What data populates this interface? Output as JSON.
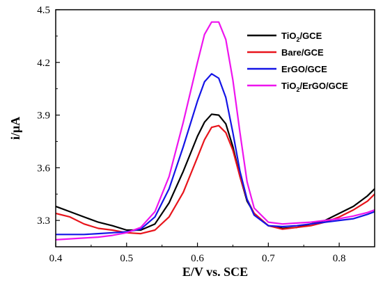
{
  "chart_data": {
    "type": "line",
    "xlabel": "E/V vs. SCE",
    "ylabel": "i/μA",
    "xlim": [
      0.4,
      0.85
    ],
    "ylim": [
      3.15,
      4.5
    ],
    "xticks": [
      "0.4",
      "0.5",
      "0.6",
      "0.7",
      "0.8"
    ],
    "yticks": [
      "3.3",
      "3.6",
      "3.9",
      "4.2",
      "4.5"
    ],
    "grid": false,
    "legend_position": "top-right",
    "series": [
      {
        "name": "TiO2/GCE",
        "legend_parts": [
          "TiO",
          "2",
          "/GCE"
        ],
        "color": "#000000",
        "x": [
          0.4,
          0.42,
          0.44,
          0.46,
          0.48,
          0.5,
          0.52,
          0.54,
          0.56,
          0.58,
          0.6,
          0.61,
          0.62,
          0.63,
          0.64,
          0.65,
          0.66,
          0.67,
          0.68,
          0.7,
          0.72,
          0.74,
          0.76,
          0.78,
          0.8,
          0.82,
          0.84,
          0.85
        ],
        "y": [
          3.38,
          3.35,
          3.32,
          3.29,
          3.27,
          3.245,
          3.245,
          3.28,
          3.4,
          3.58,
          3.78,
          3.86,
          3.905,
          3.9,
          3.85,
          3.72,
          3.55,
          3.41,
          3.34,
          3.27,
          3.255,
          3.26,
          3.28,
          3.3,
          3.34,
          3.38,
          3.44,
          3.48
        ]
      },
      {
        "name": "Bare/GCE",
        "legend_parts": [
          "Bare/GCE"
        ],
        "color": "#e8141b",
        "x": [
          0.4,
          0.42,
          0.44,
          0.46,
          0.48,
          0.5,
          0.52,
          0.54,
          0.56,
          0.58,
          0.6,
          0.61,
          0.62,
          0.63,
          0.64,
          0.65,
          0.66,
          0.67,
          0.68,
          0.7,
          0.72,
          0.74,
          0.76,
          0.78,
          0.8,
          0.82,
          0.84,
          0.85
        ],
        "y": [
          3.34,
          3.32,
          3.28,
          3.255,
          3.245,
          3.23,
          3.225,
          3.245,
          3.32,
          3.46,
          3.66,
          3.76,
          3.83,
          3.84,
          3.8,
          3.7,
          3.55,
          3.42,
          3.34,
          3.27,
          3.25,
          3.26,
          3.27,
          3.29,
          3.32,
          3.36,
          3.41,
          3.45
        ]
      },
      {
        "name": "ErGO/GCE",
        "legend_parts": [
          "ErGO/GCE"
        ],
        "color": "#1414e6",
        "x": [
          0.4,
          0.42,
          0.44,
          0.46,
          0.48,
          0.5,
          0.52,
          0.54,
          0.56,
          0.58,
          0.6,
          0.61,
          0.62,
          0.63,
          0.64,
          0.65,
          0.66,
          0.67,
          0.68,
          0.7,
          0.72,
          0.74,
          0.76,
          0.78,
          0.8,
          0.82,
          0.84,
          0.85
        ],
        "y": [
          3.22,
          3.22,
          3.22,
          3.225,
          3.23,
          3.235,
          3.25,
          3.32,
          3.48,
          3.72,
          3.98,
          4.09,
          4.135,
          4.11,
          4.0,
          3.8,
          3.58,
          3.42,
          3.33,
          3.27,
          3.265,
          3.27,
          3.28,
          3.29,
          3.3,
          3.31,
          3.335,
          3.35
        ]
      },
      {
        "name": "TiO2/ErGO/GCE",
        "legend_parts": [
          "TiO",
          "2",
          "/ErGO/GCE"
        ],
        "color": "#ee14ee",
        "x": [
          0.4,
          0.42,
          0.44,
          0.46,
          0.48,
          0.5,
          0.52,
          0.54,
          0.56,
          0.58,
          0.6,
          0.61,
          0.62,
          0.63,
          0.64,
          0.65,
          0.66,
          0.67,
          0.68,
          0.7,
          0.72,
          0.74,
          0.76,
          0.78,
          0.8,
          0.82,
          0.84,
          0.85
        ],
        "y": [
          3.19,
          3.195,
          3.2,
          3.205,
          3.215,
          3.23,
          3.26,
          3.35,
          3.55,
          3.86,
          4.2,
          4.36,
          4.43,
          4.43,
          4.33,
          4.1,
          3.8,
          3.52,
          3.37,
          3.29,
          3.28,
          3.285,
          3.29,
          3.3,
          3.31,
          3.325,
          3.345,
          3.36
        ]
      }
    ]
  }
}
